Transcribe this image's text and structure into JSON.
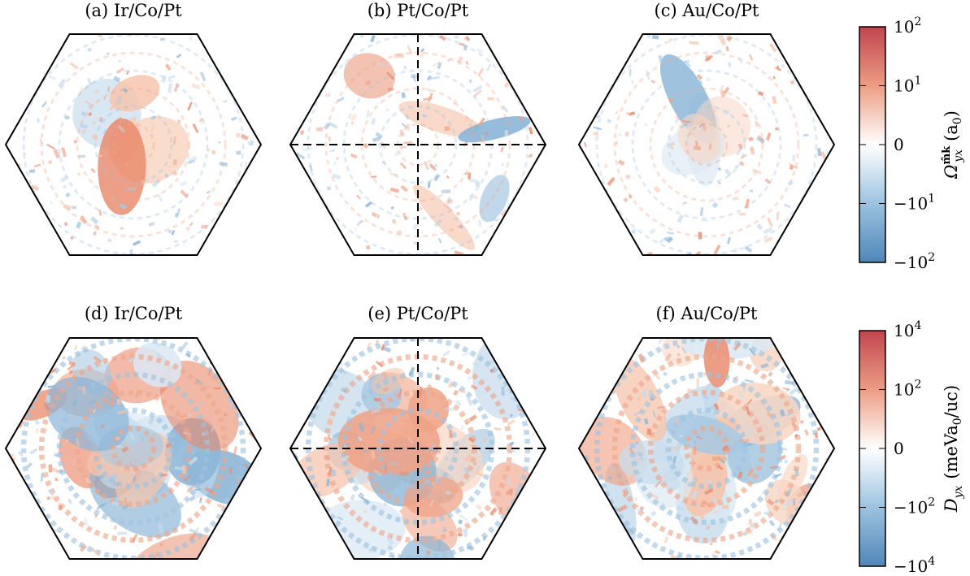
{
  "chart_data": [
    {
      "type": "heatmap",
      "row": "top",
      "quantity_label": "Ω",
      "quantity_sub": "yx",
      "quantity_sup": "m̂k",
      "unit_label": "(a",
      "unit_sub": "0",
      "unit_close": ")",
      "colorbar": {
        "scale": "symlog",
        "ticks": [
          {
            "base": "10",
            "exp": "2"
          },
          {
            "base": "10",
            "exp": "1"
          },
          {
            "base": "0",
            "exp": ""
          },
          {
            "base": "−10",
            "exp": "1"
          },
          {
            "base": "−10",
            "exp": "2"
          }
        ],
        "colors": {
          "max": "#c1454f",
          "mid": "#ffffff",
          "min": "#4f86b8"
        }
      },
      "panels": [
        {
          "title": "(a) Ir/Co/Pt",
          "crosshair": false,
          "level": 0.15
        },
        {
          "title": "(b) Pt/Co/Pt",
          "crosshair": true,
          "level": 0.15
        },
        {
          "title": "(c) Au/Co/Pt",
          "crosshair": false,
          "level": 0.15
        }
      ]
    },
    {
      "type": "heatmap",
      "row": "bottom",
      "quantity_label": "D",
      "quantity_sub": "yx",
      "unit_label": "(meVa",
      "unit_sub": "0",
      "unit_close": "/uc)",
      "colorbar": {
        "scale": "symlog",
        "ticks": [
          {
            "base": "10",
            "exp": "4"
          },
          {
            "base": "10",
            "exp": "2"
          },
          {
            "base": "0",
            "exp": ""
          },
          {
            "base": "−10",
            "exp": "2"
          },
          {
            "base": "−10",
            "exp": "4"
          }
        ],
        "colors": {
          "max": "#c1454f",
          "mid": "#ffffff",
          "min": "#4f86b8"
        }
      },
      "panels": [
        {
          "title": "(d) Ir/Co/Pt",
          "crosshair": false,
          "level": 0.75
        },
        {
          "title": "(e) Pt/Co/Pt",
          "crosshair": true,
          "level": 0.75
        },
        {
          "title": "(f) Au/Co/Pt",
          "crosshair": false,
          "level": 0.75
        }
      ]
    }
  ]
}
